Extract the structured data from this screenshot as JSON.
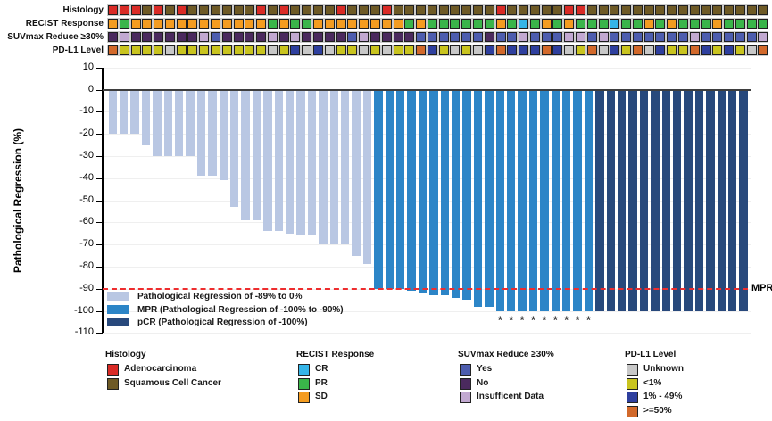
{
  "tracks": [
    {
      "label": "Histology",
      "values": [
        "A",
        "A",
        "A",
        "S",
        "A",
        "S",
        "A",
        "S",
        "S",
        "S",
        "S",
        "S",
        "S",
        "A",
        "S",
        "A",
        "S",
        "S",
        "S",
        "S",
        "A",
        "S",
        "S",
        "S",
        "A",
        "S",
        "S",
        "S",
        "S",
        "S",
        "S",
        "S",
        "S",
        "S",
        "A",
        "S",
        "S",
        "S",
        "S",
        "S",
        "A",
        "A",
        "S",
        "S",
        "S",
        "S",
        "S",
        "S",
        "S",
        "S",
        "S",
        "S",
        "S",
        "S",
        "S",
        "S",
        "S",
        "S"
      ],
      "colors": {
        "A": "#d92b26",
        "S": "#6e5a26"
      },
      "names": {
        "A": "Adenocarcinoma",
        "S": "Squamous Cell Cancer"
      }
    },
    {
      "label": "RECIST Response",
      "values": [
        "SD",
        "PR",
        "SD",
        "SD",
        "SD",
        "SD",
        "SD",
        "SD",
        "SD",
        "SD",
        "SD",
        "SD",
        "SD",
        "SD",
        "PR",
        "SD",
        "PR",
        "PR",
        "SD",
        "SD",
        "SD",
        "SD",
        "SD",
        "SD",
        "SD",
        "SD",
        "PR",
        "SD",
        "PR",
        "PR",
        "PR",
        "PR",
        "PR",
        "PR",
        "SD",
        "PR",
        "CR",
        "PR",
        "SD",
        "PR",
        "SD",
        "PR",
        "PR",
        "PR",
        "CR",
        "PR",
        "PR",
        "SD",
        "PR",
        "SD",
        "PR",
        "PR",
        "PR",
        "SD",
        "PR",
        "PR",
        "PR",
        "PR"
      ],
      "colors": {
        "CR": "#35b5e8",
        "PR": "#3ab54a",
        "SD": "#f49c20"
      },
      "names": {
        "CR": "CR",
        "PR": "PR",
        "SD": "SD"
      }
    },
    {
      "label": "SUVmax Reduce ≥30%",
      "values": [
        "N",
        "I",
        "N",
        "N",
        "N",
        "N",
        "N",
        "N",
        "I",
        "Y",
        "N",
        "N",
        "N",
        "N",
        "I",
        "N",
        "I",
        "N",
        "N",
        "N",
        "N",
        "Y",
        "I",
        "N",
        "N",
        "N",
        "N",
        "Y",
        "Y",
        "Y",
        "Y",
        "Y",
        "Y",
        "N",
        "Y",
        "Y",
        "I",
        "Y",
        "Y",
        "Y",
        "I",
        "I",
        "Y",
        "I",
        "Y",
        "Y",
        "Y",
        "Y",
        "Y",
        "Y",
        "Y",
        "I",
        "Y",
        "Y",
        "Y",
        "Y",
        "Y",
        "I"
      ],
      "colors": {
        "Y": "#4d5dae",
        "N": "#4b2a5e",
        "I": "#c2a9d1"
      },
      "names": {
        "Y": "Yes",
        "N": "No",
        "I": "Insufficent Data"
      }
    },
    {
      "label": "PD-L1 Level",
      "values": [
        "H",
        "L",
        "L",
        "L",
        "L",
        "U",
        "L",
        "L",
        "L",
        "L",
        "L",
        "L",
        "L",
        "L",
        "U",
        "L",
        "M",
        "U",
        "M",
        "U",
        "L",
        "L",
        "U",
        "L",
        "U",
        "L",
        "L",
        "H",
        "M",
        "L",
        "U",
        "L",
        "U",
        "M",
        "H",
        "M",
        "M",
        "M",
        "H",
        "M",
        "U",
        "L",
        "H",
        "U",
        "M",
        "L",
        "H",
        "U",
        "M",
        "L",
        "L",
        "H",
        "M",
        "L",
        "M",
        "L",
        "U",
        "H"
      ],
      "colors": {
        "U": "#c8c8c8",
        "L": "#c9c41f",
        "M": "#2e3f9e",
        "H": "#d2692b"
      },
      "names": {
        "U": "Unknown",
        "L": "<1%",
        "M": "1% - 49%",
        "H": ">=50%"
      }
    }
  ],
  "chart_data": {
    "type": "bar",
    "title": "",
    "xlabel": "",
    "ylabel": "Pathological Regression (%)",
    "ylim": [
      10,
      -110
    ],
    "y_ticks": [
      10,
      0,
      -10,
      -20,
      -30,
      -40,
      -50,
      -60,
      -70,
      -80,
      -90,
      -100,
      -110
    ],
    "grid": "faint-horizontal",
    "values": [
      -20,
      -20,
      -20,
      -25,
      -30,
      -30,
      -30,
      -30,
      -39,
      -39,
      -41,
      -53,
      -59,
      -59,
      -64,
      -64,
      -65,
      -66,
      -66,
      -70,
      -70,
      -70,
      -75,
      -79,
      -90,
      -90,
      -90,
      -91,
      -92,
      -93,
      -93,
      -94,
      -95,
      -98,
      -98,
      -100,
      -100,
      -100,
      -100,
      -100,
      -100,
      -100,
      -100,
      -100,
      -100,
      -100,
      -100,
      -100,
      -100,
      -100,
      -100,
      -100,
      -100,
      -100,
      -100,
      -100,
      -100,
      -100
    ],
    "bar_groups": {
      "regression": [
        1,
        24
      ],
      "mpr": [
        25,
        44
      ],
      "pcr": [
        45,
        58
      ]
    },
    "group_colors": {
      "regression": "#b9c7e3",
      "mpr": "#2c85c7",
      "pcr": "#28497c"
    },
    "asterisk_bars": [
      36,
      37,
      38,
      39,
      40,
      41,
      42,
      43,
      44
    ],
    "mpr_line": {
      "value": -90,
      "color": "#ee2d2e",
      "label": "MPR"
    },
    "legend": {
      "position": "bottom-left-inside",
      "items": [
        {
          "label": "Pathological Regression of -89% to 0%",
          "color": "#b9c7e3"
        },
        {
          "label": "MPR (Pathological Regression of -100% to -90%)",
          "color": "#2c85c7"
        },
        {
          "label": "pCR (Pathological Regression of -100%)",
          "color": "#28497c"
        }
      ]
    }
  },
  "bottom_legends": [
    {
      "title": "Histology",
      "items": [
        {
          "label": "Adenocarcinoma",
          "color": "#d92b26"
        },
        {
          "label": "Squamous Cell Cancer",
          "color": "#6e5a26"
        }
      ]
    },
    {
      "title": "RECIST Response",
      "items": [
        {
          "label": "CR",
          "color": "#35b5e8"
        },
        {
          "label": "PR",
          "color": "#3ab54a"
        },
        {
          "label": "SD",
          "color": "#f49c20"
        }
      ]
    },
    {
      "title": "SUVmax Reduce ≥30%",
      "items": [
        {
          "label": "Yes",
          "color": "#4d5dae"
        },
        {
          "label": "No",
          "color": "#4b2a5e"
        },
        {
          "label": "Insufficent Data",
          "color": "#c2a9d1"
        }
      ]
    },
    {
      "title": "PD-L1 Level",
      "items": [
        {
          "label": "Unknown",
          "color": "#c8c8c8"
        },
        {
          "label": "<1%",
          "color": "#c9c41f"
        },
        {
          "label": "1% - 49%",
          "color": "#2e3f9e"
        },
        {
          "label": ">=50%",
          "color": "#d2692b"
        }
      ]
    }
  ]
}
